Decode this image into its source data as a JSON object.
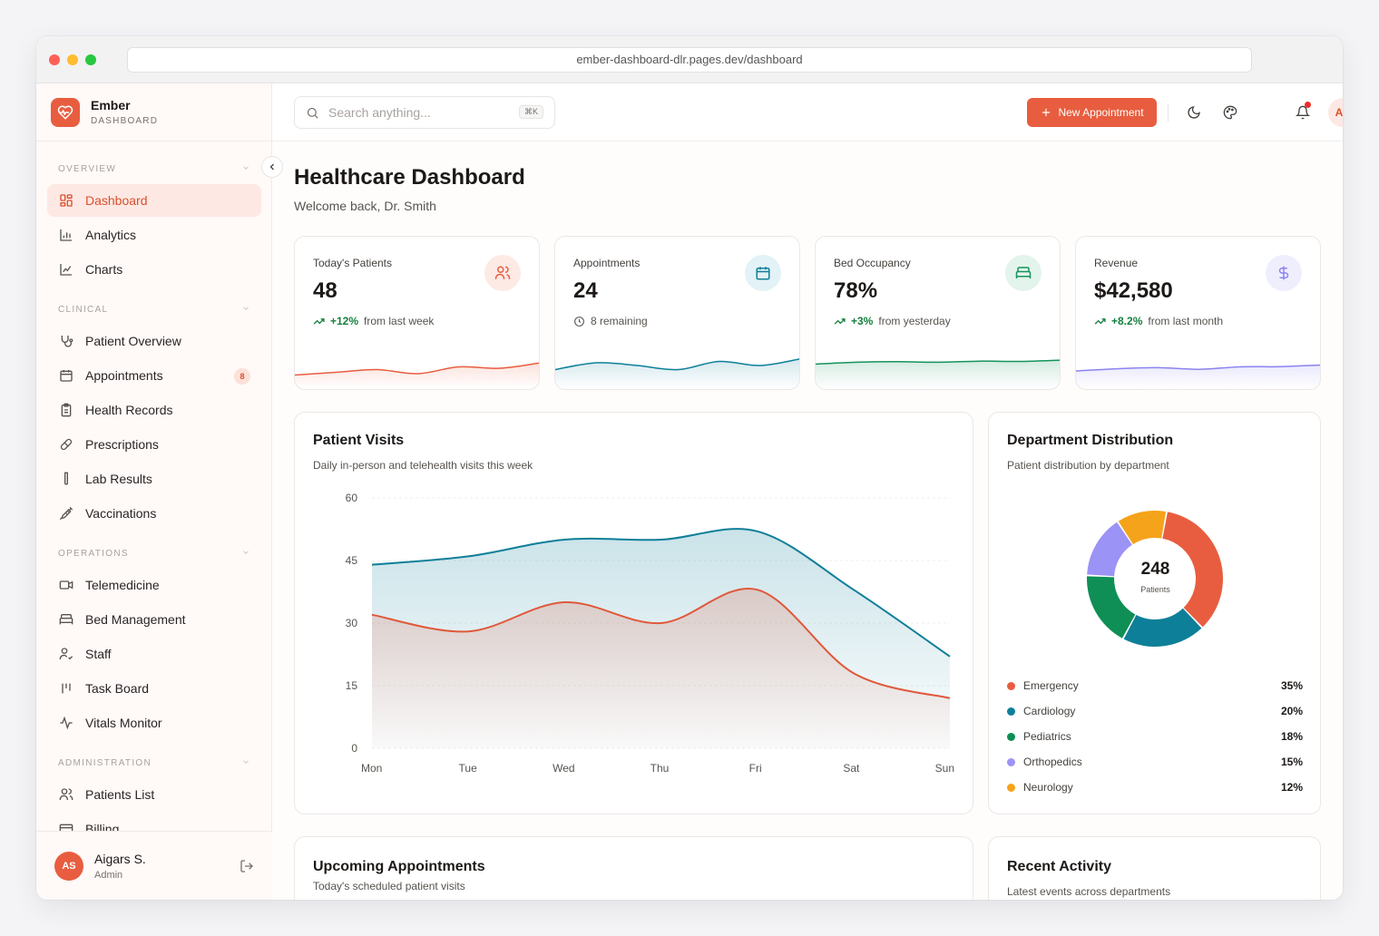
{
  "browser": {
    "url": "ember-dashboard-dlr.pages.dev/dashboard"
  },
  "brand": {
    "name": "Ember",
    "subtitle": "DASHBOARD",
    "logo_icon": "heart-pulse-icon",
    "accent": "#e85d3f"
  },
  "sidebar": {
    "sections": [
      {
        "label": "OVERVIEW",
        "items": [
          {
            "label": "Dashboard",
            "icon": "layout-grid-icon",
            "active": true
          },
          {
            "label": "Analytics",
            "icon": "bar-chart-icon"
          },
          {
            "label": "Charts",
            "icon": "chart-line-icon"
          }
        ]
      },
      {
        "label": "CLINICAL",
        "items": [
          {
            "label": "Patient Overview",
            "icon": "stethoscope-icon"
          },
          {
            "label": "Appointments",
            "icon": "calendar-icon",
            "badge": "8"
          },
          {
            "label": "Health Records",
            "icon": "clipboard-icon"
          },
          {
            "label": "Prescriptions",
            "icon": "pill-icon"
          },
          {
            "label": "Lab Results",
            "icon": "test-tube-icon"
          },
          {
            "label": "Vaccinations",
            "icon": "syringe-icon"
          }
        ]
      },
      {
        "label": "OPERATIONS",
        "items": [
          {
            "label": "Telemedicine",
            "icon": "video-icon"
          },
          {
            "label": "Bed Management",
            "icon": "bed-icon"
          },
          {
            "label": "Staff",
            "icon": "user-check-icon"
          },
          {
            "label": "Task Board",
            "icon": "kanban-icon"
          },
          {
            "label": "Vitals Monitor",
            "icon": "activity-icon"
          }
        ]
      },
      {
        "label": "ADMINISTRATION",
        "items": [
          {
            "label": "Patients List",
            "icon": "users-icon"
          },
          {
            "label": "Billing",
            "icon": "credit-card-icon"
          }
        ]
      }
    ],
    "user": {
      "initials": "AS",
      "name": "Aigars S.",
      "role": "Admin"
    }
  },
  "header": {
    "search_placeholder": "Search anything...",
    "search_shortcut": "⌘K",
    "new_button": "New Appointment",
    "avatar_initials": "AS"
  },
  "page": {
    "title": "Healthcare Dashboard",
    "subtitle": "Welcome back, Dr. Smith"
  },
  "stats": [
    {
      "label": "Today's Patients",
      "value": "48",
      "change": "+12%",
      "change_text": "from last week",
      "icon": "users-icon",
      "color": "#e85d3f",
      "bg": "#fdeae5",
      "spark": [
        0.25,
        0.35,
        0.45,
        0.3,
        0.55,
        0.5,
        0.7
      ]
    },
    {
      "label": "Appointments",
      "value": "24",
      "change": "",
      "change_text": "8 remaining",
      "icon": "calendar-icon",
      "color": "#0e7f99",
      "bg": "#e2f2f6",
      "spark": [
        0.45,
        0.7,
        0.6,
        0.45,
        0.75,
        0.6,
        0.85
      ]
    },
    {
      "label": "Bed Occupancy",
      "value": "78%",
      "change": "+3%",
      "change_text": "from yesterday",
      "icon": "bed-icon",
      "color": "#15935c",
      "bg": "#e3f4ec",
      "spark": [
        0.65,
        0.72,
        0.74,
        0.72,
        0.76,
        0.75,
        0.8
      ]
    },
    {
      "label": "Revenue",
      "value": "$42,580",
      "change": "+8.2%",
      "change_text": "from last month",
      "icon": "dollar-icon",
      "color": "#8b83f0",
      "bg": "#efeefd",
      "spark": [
        0.4,
        0.48,
        0.52,
        0.46,
        0.55,
        0.56,
        0.62
      ]
    }
  ],
  "patient_visits": {
    "title": "Patient Visits",
    "subtitle": "Daily in-person and telehealth visits this week"
  },
  "department": {
    "title": "Department Distribution",
    "subtitle": "Patient distribution by department",
    "total": "248",
    "total_label": "Patients",
    "items": [
      {
        "name": "Emergency",
        "pct": "35%",
        "value": 35,
        "color": "#e85d3f"
      },
      {
        "name": "Cardiology",
        "pct": "20%",
        "value": 20,
        "color": "#0e7f99"
      },
      {
        "name": "Pediatrics",
        "pct": "18%",
        "value": 18,
        "color": "#0f8f55"
      },
      {
        "name": "Orthopedics",
        "pct": "15%",
        "value": 15,
        "color": "#9b93f5"
      },
      {
        "name": "Neurology",
        "pct": "12%",
        "value": 12,
        "color": "#f5a31a"
      }
    ]
  },
  "upcoming": {
    "title": "Upcoming Appointments",
    "subtitle": "Today's scheduled patient visits"
  },
  "activity": {
    "title": "Recent Activity",
    "subtitle": "Latest events across departments"
  },
  "chart_data": {
    "type": "area",
    "categories": [
      "Mon",
      "Tue",
      "Wed",
      "Thu",
      "Fri",
      "Sat",
      "Sun"
    ],
    "yticks": [
      0,
      15,
      30,
      45,
      60
    ],
    "ylim": [
      0,
      60
    ],
    "series": [
      {
        "values": [
          44,
          46,
          50,
          50,
          52,
          38,
          22
        ],
        "color": "#0e7f99"
      },
      {
        "values": [
          32,
          28,
          35,
          30,
          38,
          18,
          12
        ],
        "color": "#e0583a"
      }
    ]
  }
}
